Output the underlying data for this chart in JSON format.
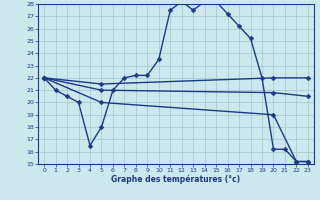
{
  "xlabel": "Graphe des températures (°c)",
  "bg_color": "#cce8ec",
  "grid_color": "#a0c8d0",
  "line_color": "#1a3a8c",
  "xlim": [
    -0.5,
    23.5
  ],
  "ylim": [
    15,
    28
  ],
  "yticks": [
    15,
    16,
    17,
    18,
    19,
    20,
    21,
    22,
    23,
    24,
    25,
    26,
    27,
    28
  ],
  "xticks": [
    0,
    1,
    2,
    3,
    4,
    5,
    6,
    7,
    8,
    9,
    10,
    11,
    12,
    13,
    14,
    15,
    16,
    17,
    18,
    19,
    20,
    21,
    22,
    23
  ],
  "series": [
    {
      "x": [
        0,
        1,
        2,
        3,
        4,
        5,
        6,
        7,
        8,
        9,
        10,
        11,
        12,
        13,
        14,
        15,
        16,
        17,
        18,
        19,
        20,
        21,
        22,
        23
      ],
      "y": [
        22,
        21,
        20.5,
        20,
        16.5,
        18.0,
        21.0,
        22.0,
        22.2,
        22.2,
        23.5,
        27.5,
        28.2,
        27.5,
        28.2,
        28.2,
        27.2,
        26.2,
        25.2,
        22.0,
        16.2,
        16.2,
        15.2,
        15.2
      ],
      "marker": "D",
      "markersize": 2.5,
      "linewidth": 1.0
    },
    {
      "x": [
        0,
        5,
        20,
        23
      ],
      "y": [
        22,
        21.5,
        22.0,
        22.0
      ],
      "marker": "D",
      "markersize": 2.5,
      "linewidth": 1.0
    },
    {
      "x": [
        0,
        5,
        20,
        23
      ],
      "y": [
        22,
        21.0,
        20.8,
        20.5
      ],
      "marker": "D",
      "markersize": 2.5,
      "linewidth": 1.0
    },
    {
      "x": [
        0,
        5,
        20,
        22,
        23
      ],
      "y": [
        22,
        20.0,
        19.0,
        15.2,
        15.2
      ],
      "marker": "D",
      "markersize": 2.5,
      "linewidth": 1.0
    }
  ]
}
